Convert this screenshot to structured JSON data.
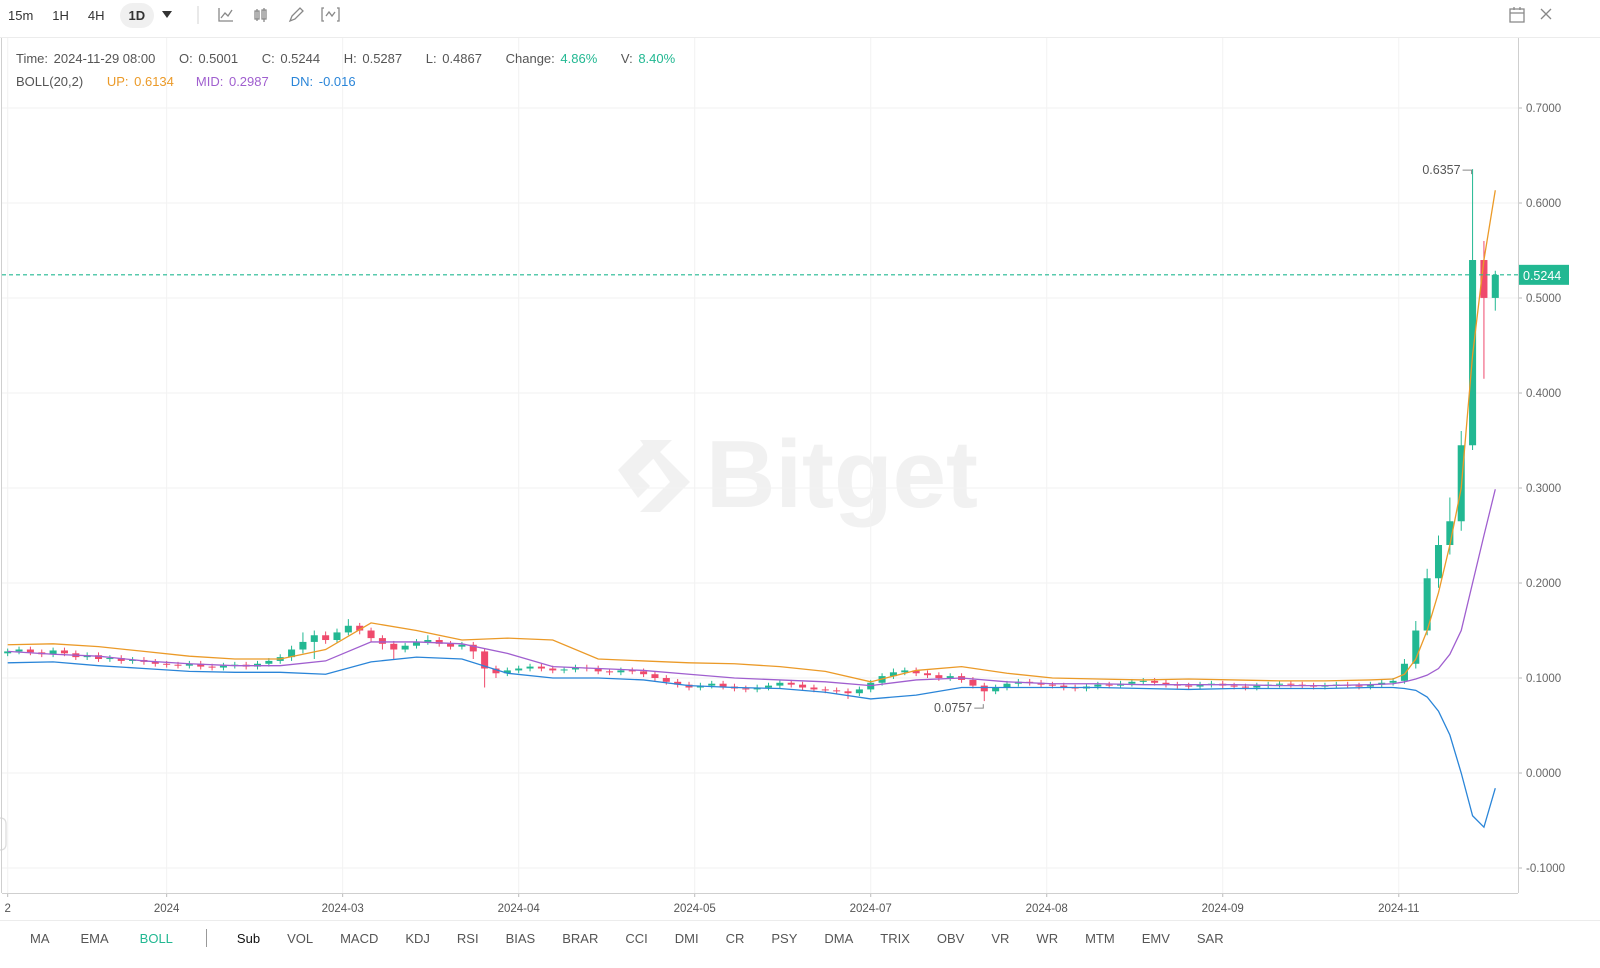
{
  "toolbar": {
    "periods": [
      "15m",
      "1H",
      "4H",
      "1D"
    ],
    "active_period": 3
  },
  "info": {
    "time_label": "Time:",
    "time": "2024-11-29 08:00",
    "open_label": "O:",
    "close_label": "C:",
    "high_label": "H:",
    "low_label": "L:",
    "change_label": "Change:",
    "change": "4.86%",
    "volume_label": "V:",
    "volume": "8.40%",
    "indicator": "BOLL(20,2)"
  },
  "watermark": "Bitget",
  "indicator_bar": {
    "main": [
      "MA",
      "EMA",
      "BOLL"
    ],
    "active_main": 2,
    "sub_label": "Sub",
    "sub": [
      "VOL",
      "MACD",
      "KDJ",
      "RSI",
      "BIAS",
      "BRAR",
      "CCI",
      "DMI",
      "CR",
      "PSY",
      "DMA",
      "TRIX",
      "OBV",
      "VR",
      "WR",
      "MTM",
      "EMV",
      "SAR"
    ]
  },
  "chart_data": {
    "type": "candlestick",
    "up_color": "#22b892",
    "down_color": "#ef4a6c",
    "grid": true,
    "last_price_line": true,
    "mark_extremes": true,
    "xlim": [
      -0.5,
      133
    ],
    "ylim": [
      -0.1263,
      0.7737
    ],
    "xticks": [
      {
        "value": 0,
        "label": "2"
      },
      {
        "value": 14,
        "label": "2024"
      },
      {
        "value": 29.5,
        "label": "2024-03"
      },
      {
        "value": 45,
        "label": "2024-04"
      },
      {
        "value": 60.5,
        "label": "2024-05"
      },
      {
        "value": 76,
        "label": "2024-07"
      },
      {
        "value": 91.5,
        "label": "2024-08"
      },
      {
        "value": 107,
        "label": "2024-09"
      },
      {
        "value": 122.5,
        "label": "2024-11"
      }
    ],
    "yticks": [
      {
        "value": 0.7,
        "label": "0.7000"
      },
      {
        "value": 0.6,
        "label": "0.6000"
      },
      {
        "value": 0.5,
        "label": "0.5000"
      },
      {
        "value": 0.4,
        "label": "0.4000"
      },
      {
        "value": 0.3,
        "label": "0.3000"
      },
      {
        "value": 0.2,
        "label": "0.2000"
      },
      {
        "value": 0.1,
        "label": "0.1000"
      },
      {
        "value": 0,
        "label": "0.0000"
      },
      {
        "value": -0.1,
        "label": "-0.1000"
      }
    ],
    "open": [
      0.126,
      0.128,
      0.13,
      0.127,
      0.125,
      0.129,
      0.126,
      0.122,
      0.124,
      0.12,
      0.121,
      0.118,
      0.119,
      0.117,
      0.115,
      0.114,
      0.113,
      0.115,
      0.112,
      0.111,
      0.113,
      0.114,
      0.112,
      0.115,
      0.118,
      0.122,
      0.13,
      0.138,
      0.145,
      0.14,
      0.148,
      0.155,
      0.15,
      0.142,
      0.136,
      0.13,
      0.134,
      0.138,
      0.14,
      0.136,
      0.133,
      0.135,
      0.128,
      0.11,
      0.105,
      0.108,
      0.11,
      0.112,
      0.11,
      0.108,
      0.109,
      0.111,
      0.11,
      0.107,
      0.106,
      0.108,
      0.107,
      0.104,
      0.1,
      0.096,
      0.093,
      0.09,
      0.092,
      0.094,
      0.091,
      0.089,
      0.088,
      0.09,
      0.092,
      0.095,
      0.093,
      0.09,
      0.088,
      0.087,
      0.086,
      0.084,
      0.088,
      0.095,
      0.102,
      0.106,
      0.108,
      0.105,
      0.103,
      0.1,
      0.102,
      0.098,
      0.092,
      0.086,
      0.09,
      0.094,
      0.096,
      0.095,
      0.093,
      0.092,
      0.09,
      0.089,
      0.091,
      0.093,
      0.092,
      0.094,
      0.096,
      0.097,
      0.095,
      0.093,
      0.092,
      0.091,
      0.093,
      0.094,
      0.092,
      0.091,
      0.09,
      0.092,
      0.093,
      0.094,
      0.093,
      0.092,
      0.091,
      0.092,
      0.093,
      0.092,
      0.091,
      0.093,
      0.095,
      0.097,
      0.115,
      0.15,
      0.205,
      0.24,
      0.265,
      0.345,
      0.54,
      0.5001
    ],
    "high": [
      0.131,
      0.133,
      0.133,
      0.13,
      0.132,
      0.132,
      0.129,
      0.127,
      0.127,
      0.124,
      0.124,
      0.122,
      0.122,
      0.12,
      0.118,
      0.117,
      0.118,
      0.118,
      0.115,
      0.116,
      0.117,
      0.117,
      0.118,
      0.121,
      0.125,
      0.134,
      0.148,
      0.15,
      0.149,
      0.152,
      0.162,
      0.158,
      0.153,
      0.145,
      0.139,
      0.137,
      0.141,
      0.145,
      0.143,
      0.139,
      0.138,
      0.138,
      0.131,
      0.113,
      0.111,
      0.113,
      0.115,
      0.115,
      0.113,
      0.112,
      0.114,
      0.114,
      0.113,
      0.11,
      0.111,
      0.111,
      0.11,
      0.107,
      0.103,
      0.099,
      0.096,
      0.095,
      0.097,
      0.097,
      0.094,
      0.092,
      0.093,
      0.095,
      0.098,
      0.098,
      0.096,
      0.093,
      0.091,
      0.09,
      0.089,
      0.091,
      0.098,
      0.105,
      0.11,
      0.111,
      0.111,
      0.108,
      0.106,
      0.105,
      0.105,
      0.101,
      0.095,
      0.093,
      0.097,
      0.099,
      0.099,
      0.098,
      0.096,
      0.095,
      0.093,
      0.094,
      0.096,
      0.096,
      0.097,
      0.099,
      0.1,
      0.1,
      0.098,
      0.096,
      0.095,
      0.096,
      0.097,
      0.097,
      0.095,
      0.094,
      0.095,
      0.096,
      0.097,
      0.097,
      0.096,
      0.095,
      0.095,
      0.096,
      0.096,
      0.095,
      0.096,
      0.098,
      0.1,
      0.12,
      0.16,
      0.215,
      0.25,
      0.29,
      0.36,
      0.6357,
      0.56,
      0.5287
    ],
    "low": [
      0.123,
      0.125,
      0.124,
      0.122,
      0.122,
      0.123,
      0.119,
      0.119,
      0.117,
      0.117,
      0.115,
      0.115,
      0.114,
      0.112,
      0.111,
      0.11,
      0.11,
      0.109,
      0.108,
      0.108,
      0.11,
      0.109,
      0.109,
      0.112,
      0.115,
      0.118,
      0.126,
      0.12,
      0.136,
      0.137,
      0.145,
      0.146,
      0.138,
      0.13,
      0.12,
      0.127,
      0.131,
      0.135,
      0.133,
      0.13,
      0.13,
      0.12,
      0.09,
      0.1,
      0.102,
      0.105,
      0.107,
      0.107,
      0.105,
      0.105,
      0.106,
      0.107,
      0.104,
      0.103,
      0.103,
      0.104,
      0.101,
      0.097,
      0.093,
      0.09,
      0.087,
      0.087,
      0.089,
      0.088,
      0.086,
      0.085,
      0.085,
      0.087,
      0.089,
      0.09,
      0.087,
      0.085,
      0.084,
      0.083,
      0.078,
      0.081,
      0.085,
      0.092,
      0.099,
      0.103,
      0.102,
      0.1,
      0.097,
      0.097,
      0.095,
      0.089,
      0.0757,
      0.083,
      0.087,
      0.091,
      0.092,
      0.09,
      0.089,
      0.087,
      0.086,
      0.086,
      0.088,
      0.089,
      0.089,
      0.091,
      0.093,
      0.092,
      0.09,
      0.089,
      0.088,
      0.088,
      0.09,
      0.089,
      0.088,
      0.087,
      0.087,
      0.089,
      0.09,
      0.09,
      0.089,
      0.088,
      0.088,
      0.089,
      0.089,
      0.088,
      0.088,
      0.09,
      0.092,
      0.094,
      0.11,
      0.145,
      0.195,
      0.23,
      0.255,
      0.34,
      0.415,
      0.4867
    ],
    "close": [
      0.128,
      0.13,
      0.127,
      0.125,
      0.129,
      0.126,
      0.122,
      0.124,
      0.12,
      0.121,
      0.118,
      0.119,
      0.117,
      0.115,
      0.114,
      0.113,
      0.115,
      0.112,
      0.111,
      0.113,
      0.114,
      0.112,
      0.115,
      0.118,
      0.122,
      0.13,
      0.138,
      0.145,
      0.14,
      0.148,
      0.155,
      0.15,
      0.142,
      0.136,
      0.13,
      0.134,
      0.138,
      0.14,
      0.136,
      0.133,
      0.135,
      0.128,
      0.11,
      0.105,
      0.108,
      0.11,
      0.112,
      0.11,
      0.108,
      0.109,
      0.111,
      0.11,
      0.107,
      0.106,
      0.108,
      0.107,
      0.104,
      0.1,
      0.096,
      0.093,
      0.09,
      0.092,
      0.094,
      0.091,
      0.089,
      0.088,
      0.09,
      0.092,
      0.095,
      0.093,
      0.09,
      0.088,
      0.087,
      0.086,
      0.084,
      0.088,
      0.095,
      0.102,
      0.106,
      0.108,
      0.105,
      0.103,
      0.1,
      0.102,
      0.098,
      0.092,
      0.086,
      0.09,
      0.094,
      0.096,
      0.095,
      0.093,
      0.092,
      0.09,
      0.089,
      0.091,
      0.093,
      0.092,
      0.094,
      0.096,
      0.097,
      0.095,
      0.093,
      0.092,
      0.091,
      0.093,
      0.094,
      0.092,
      0.091,
      0.09,
      0.092,
      0.093,
      0.094,
      0.093,
      0.092,
      0.091,
      0.092,
      0.093,
      0.092,
      0.091,
      0.093,
      0.095,
      0.097,
      0.115,
      0.15,
      0.205,
      0.24,
      0.265,
      0.345,
      0.54,
      0.5001,
      0.5244
    ],
    "series": [
      {
        "name": "UP:",
        "color": "#eb9a28",
        "x": [
          0,
          4,
          8,
          12,
          16,
          20,
          24,
          28,
          32,
          36,
          40,
          44,
          48,
          52,
          56,
          60,
          64,
          68,
          72,
          76,
          80,
          84,
          88,
          92,
          96,
          100,
          104,
          108,
          112,
          116,
          120,
          122,
          123,
          124,
          125,
          126,
          127,
          128,
          129,
          130,
          131
        ],
        "values": [
          0.135,
          0.136,
          0.133,
          0.128,
          0.123,
          0.12,
          0.12,
          0.13,
          0.158,
          0.15,
          0.14,
          0.142,
          0.14,
          0.12,
          0.118,
          0.116,
          0.115,
          0.112,
          0.107,
          0.096,
          0.108,
          0.112,
          0.105,
          0.1,
          0.099,
          0.098,
          0.099,
          0.098,
          0.097,
          0.097,
          0.098,
          0.099,
          0.104,
          0.12,
          0.15,
          0.19,
          0.24,
          0.3,
          0.44,
          0.54,
          0.6134
        ]
      },
      {
        "name": "MID:",
        "color": "#a05fcf",
        "x": [
          0,
          4,
          8,
          12,
          16,
          20,
          24,
          28,
          32,
          36,
          40,
          44,
          48,
          52,
          56,
          60,
          64,
          68,
          72,
          76,
          80,
          84,
          88,
          92,
          96,
          100,
          104,
          108,
          112,
          116,
          120,
          122,
          123,
          124,
          125,
          126,
          127,
          128,
          129,
          130,
          131
        ],
        "values": [
          0.128,
          0.125,
          0.123,
          0.118,
          0.115,
          0.113,
          0.113,
          0.118,
          0.138,
          0.138,
          0.136,
          0.126,
          0.112,
          0.11,
          0.108,
          0.104,
          0.1,
          0.098,
          0.096,
          0.092,
          0.098,
          0.1,
          0.096,
          0.094,
          0.094,
          0.093,
          0.093,
          0.093,
          0.092,
          0.092,
          0.093,
          0.094,
          0.096,
          0.099,
          0.103,
          0.11,
          0.125,
          0.15,
          0.2,
          0.25,
          0.2987
        ]
      },
      {
        "name": "DN:",
        "color": "#2a85d8",
        "x": [
          0,
          4,
          8,
          12,
          16,
          20,
          24,
          28,
          32,
          36,
          40,
          44,
          48,
          52,
          56,
          60,
          64,
          68,
          72,
          76,
          80,
          84,
          88,
          92,
          96,
          100,
          104,
          108,
          112,
          116,
          120,
          122,
          123,
          124,
          125,
          126,
          127,
          128,
          129,
          130,
          131
        ],
        "values": [
          0.116,
          0.117,
          0.113,
          0.11,
          0.107,
          0.106,
          0.106,
          0.104,
          0.117,
          0.122,
          0.12,
          0.105,
          0.1,
          0.1,
          0.098,
          0.092,
          0.09,
          0.089,
          0.085,
          0.078,
          0.082,
          0.09,
          0.09,
          0.09,
          0.09,
          0.089,
          0.088,
          0.089,
          0.089,
          0.089,
          0.09,
          0.09,
          0.089,
          0.087,
          0.08,
          0.065,
          0.04,
          0.0,
          -0.045,
          -0.057,
          -0.016
        ]
      }
    ]
  }
}
